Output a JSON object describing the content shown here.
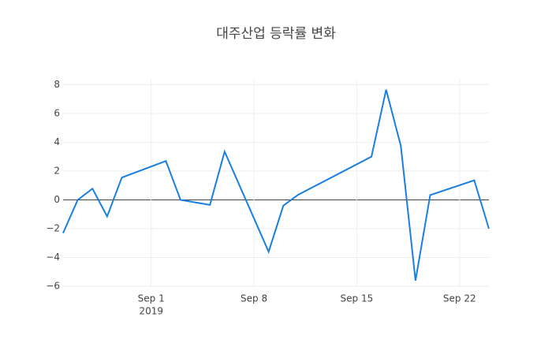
{
  "chart_data": {
    "type": "line",
    "title": "대주산업 등락률 변화",
    "x": [
      "2019-08-26",
      "2019-08-27",
      "2019-08-28",
      "2019-08-29",
      "2019-08-30",
      "2019-09-02",
      "2019-09-03",
      "2019-09-05",
      "2019-09-06",
      "2019-09-09",
      "2019-09-10",
      "2019-09-11",
      "2019-09-16",
      "2019-09-17",
      "2019-09-18",
      "2019-09-19",
      "2019-09-20",
      "2019-09-23",
      "2019-09-24"
    ],
    "values": [
      -2.3,
      0,
      0.78,
      -1.15,
      1.55,
      2.7,
      0,
      -0.35,
      3.35,
      -3.6,
      -0.4,
      0.35,
      3.0,
      7.65,
      3.75,
      -5.6,
      0.33,
      1.36,
      -2.0
    ],
    "color": "#1a7fe0",
    "xlim": [
      "2019-08-26",
      "2019-09-24"
    ],
    "xticks": [
      {
        "value": "2019-09-01",
        "label": "Sep 1"
      },
      {
        "value": "2019-09-08",
        "label": "Sep 8"
      },
      {
        "value": "2019-09-15",
        "label": "Sep 15"
      },
      {
        "value": "2019-09-22",
        "label": "Sep 22"
      }
    ],
    "xtick_year": "2019",
    "ylim": [
      -6.05,
      8.4
    ],
    "yticks": [
      {
        "value": -6,
        "label": "−6"
      },
      {
        "value": -4,
        "label": "−4"
      },
      {
        "value": -2,
        "label": "−2"
      },
      0,
      2,
      4,
      6,
      8
    ],
    "grid": true
  }
}
